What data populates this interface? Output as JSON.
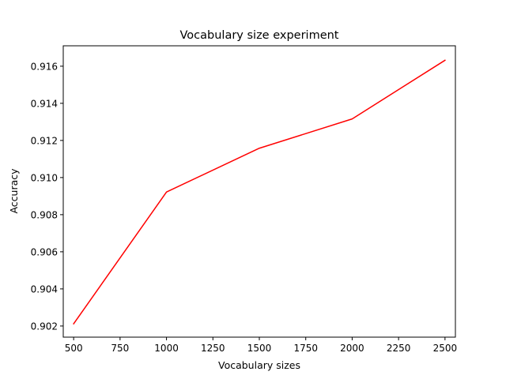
{
  "chart_data": {
    "type": "line",
    "title": "Vocabulary size experiment",
    "xlabel": "Vocabulary sizes",
    "ylabel": "Accuracy",
    "xlim": [
      444,
      2556
    ],
    "ylim": [
      0.9014,
      0.9171
    ],
    "x_ticks": [
      500,
      750,
      1000,
      1250,
      1500,
      1750,
      2000,
      2250,
      2500
    ],
    "y_ticks": [
      0.902,
      0.904,
      0.906,
      0.908,
      0.91,
      0.912,
      0.914,
      0.916
    ],
    "y_tick_labels": [
      "0.902",
      "0.904",
      "0.906",
      "0.908",
      "0.910",
      "0.912",
      "0.914",
      "0.916"
    ],
    "grid": false,
    "series": [
      {
        "color": "#ff0000",
        "x": [
          500,
          1000,
          1500,
          2000,
          2500
        ],
        "y": [
          0.90212,
          0.90922,
          0.91158,
          0.91316,
          0.91632
        ]
      }
    ]
  }
}
